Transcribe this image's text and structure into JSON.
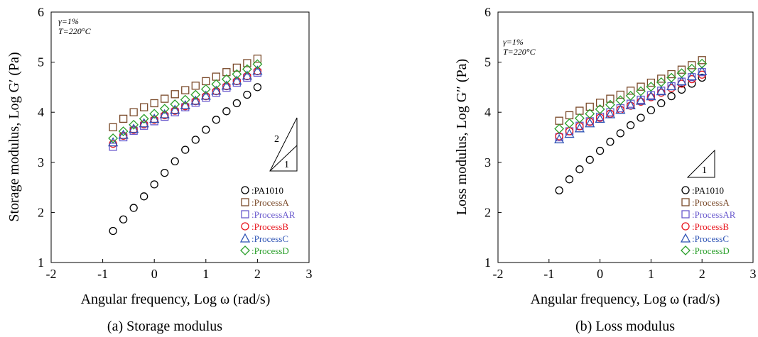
{
  "figure": {
    "captions": [
      "(a) Storage modulus",
      "(b) Loss modulus"
    ]
  },
  "colors": {
    "PA1010": "#000000",
    "ProcessA": "#7a4a2a",
    "ProcessAR": "#6a5acd",
    "ProcessB": "#e8141c",
    "ProcessC": "#2f54b5",
    "ProcessD": "#2ca02c"
  },
  "chart_data": [
    {
      "type": "scatter",
      "caption": "(a) Storage modulus",
      "xlabel": "Angular frequency, Log ω (rad/s)",
      "ylabel": "Storage modulus, Log G′ (Pa)",
      "xlim": [
        -2,
        3
      ],
      "ylim": [
        1,
        6
      ],
      "xticks": [
        -2,
        -1,
        0,
        1,
        2,
        3
      ],
      "yticks": [
        1,
        2,
        3,
        4,
        5,
        6
      ],
      "conditions": [
        "γ=1%",
        "T=220°C"
      ],
      "slope_triangle": {
        "labels": [
          "2",
          "1"
        ]
      },
      "legend_position": "bottom-right",
      "x": [
        -0.8,
        -0.6,
        -0.4,
        -0.2,
        0.0,
        0.2,
        0.4,
        0.6,
        0.8,
        1.0,
        1.2,
        1.4,
        1.6,
        1.8,
        2.0
      ],
      "series": [
        {
          "name": "PA1010",
          "marker": "circle",
          "color": "#000000",
          "values": [
            1.63,
            1.86,
            2.09,
            2.32,
            2.56,
            2.79,
            3.02,
            3.25,
            3.45,
            3.65,
            3.85,
            4.02,
            4.18,
            4.35,
            4.5
          ]
        },
        {
          "name": "ProcessA",
          "marker": "square",
          "color": "#7a4a2a",
          "values": [
            3.7,
            3.87,
            4.0,
            4.1,
            4.18,
            4.27,
            4.36,
            4.44,
            4.53,
            4.62,
            4.71,
            4.8,
            4.89,
            4.98,
            5.07
          ]
        },
        {
          "name": "ProcessAR",
          "marker": "square",
          "color": "#6a5acd",
          "values": [
            3.31,
            3.5,
            3.63,
            3.73,
            3.82,
            3.91,
            4.0,
            4.1,
            4.19,
            4.29,
            4.39,
            4.49,
            4.59,
            4.69,
            4.79
          ]
        },
        {
          "name": "ProcessB",
          "marker": "circle",
          "color": "#e8141c",
          "values": [
            3.37,
            3.53,
            3.65,
            3.76,
            3.85,
            3.94,
            4.03,
            4.12,
            4.22,
            4.32,
            4.42,
            4.52,
            4.62,
            4.72,
            4.82
          ]
        },
        {
          "name": "ProcessC",
          "marker": "triangle",
          "color": "#2f54b5",
          "values": [
            3.4,
            3.55,
            3.67,
            3.78,
            3.87,
            3.96,
            4.05,
            4.14,
            4.23,
            4.33,
            4.43,
            4.53,
            4.63,
            4.73,
            4.83
          ]
        },
        {
          "name": "ProcessD",
          "marker": "diamond",
          "color": "#2ca02c",
          "values": [
            3.48,
            3.62,
            3.75,
            3.87,
            3.97,
            4.07,
            4.16,
            4.25,
            4.35,
            4.46,
            4.56,
            4.66,
            4.76,
            4.86,
            4.96
          ]
        }
      ],
      "legend_labels": [
        ":PA1010",
        ":ProcessA",
        ":ProcessAR",
        ":ProcessB",
        ":ProcessC",
        ":ProcessD"
      ]
    },
    {
      "type": "scatter",
      "caption": "(b) Loss modulus",
      "xlabel": "Angular frequency, Log ω (rad/s)",
      "ylabel": "Loss modulus, Log G′′ (Pa)",
      "xlim": [
        -2,
        3
      ],
      "ylim": [
        1,
        6
      ],
      "xticks": [
        -2,
        -1,
        0,
        1,
        2,
        3
      ],
      "yticks": [
        1,
        2,
        3,
        4,
        5,
        6
      ],
      "conditions": [
        "γ=1%",
        "T=220°C"
      ],
      "slope_triangle": {
        "labels": [
          "1"
        ]
      },
      "legend_position": "bottom-right",
      "x": [
        -0.8,
        -0.6,
        -0.4,
        -0.2,
        0.0,
        0.2,
        0.4,
        0.6,
        0.8,
        1.0,
        1.2,
        1.4,
        1.6,
        1.8,
        2.0
      ],
      "series": [
        {
          "name": "PA1010",
          "marker": "circle",
          "color": "#000000",
          "values": [
            2.44,
            2.66,
            2.86,
            3.05,
            3.23,
            3.41,
            3.58,
            3.74,
            3.89,
            4.04,
            4.18,
            4.32,
            4.45,
            4.57,
            4.69
          ]
        },
        {
          "name": "ProcessA",
          "marker": "square",
          "color": "#7a4a2a",
          "values": [
            3.83,
            3.94,
            4.03,
            4.11,
            4.19,
            4.27,
            4.35,
            4.43,
            4.51,
            4.59,
            4.67,
            4.76,
            4.85,
            4.94,
            5.04
          ]
        },
        {
          "name": "ProcessAR",
          "marker": "square",
          "color": "#6a5acd",
          "values": [
            3.5,
            3.62,
            3.73,
            3.82,
            3.91,
            4.0,
            4.08,
            4.17,
            4.25,
            4.34,
            4.43,
            4.52,
            4.61,
            4.7,
            4.8
          ]
        },
        {
          "name": "ProcessB",
          "marker": "circle",
          "color": "#e8141c",
          "values": [
            3.52,
            3.62,
            3.72,
            3.81,
            3.89,
            3.97,
            4.05,
            4.13,
            4.21,
            4.3,
            4.39,
            4.48,
            4.57,
            4.66,
            4.75
          ]
        },
        {
          "name": "ProcessC",
          "marker": "triangle",
          "color": "#2f54b5",
          "values": [
            3.46,
            3.57,
            3.68,
            3.78,
            3.87,
            3.96,
            4.05,
            4.14,
            4.23,
            4.32,
            4.42,
            4.52,
            4.62,
            4.72,
            4.82
          ]
        },
        {
          "name": "ProcessD",
          "marker": "diamond",
          "color": "#2ca02c",
          "values": [
            3.67,
            3.78,
            3.88,
            3.97,
            4.06,
            4.15,
            4.24,
            4.33,
            4.42,
            4.51,
            4.6,
            4.69,
            4.78,
            4.87,
            4.97
          ]
        }
      ],
      "legend_labels": [
        ":PA1010",
        ":ProcessA",
        ":ProcessAR",
        ":ProcessB",
        ":ProcessC",
        ":ProcessD"
      ]
    }
  ]
}
